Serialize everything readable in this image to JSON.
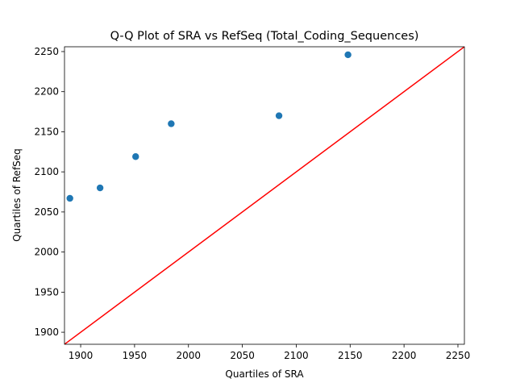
{
  "chart_data": {
    "type": "scatter",
    "title": "Q-Q Plot of SRA vs RefSeq (Total_Coding_Sequences)",
    "xlabel": "Quartiles of SRA",
    "ylabel": "Quartiles of RefSeq",
    "xlim": [
      1885,
      2256
    ],
    "ylim": [
      1885,
      2256
    ],
    "x_ticks": [
      1900,
      1950,
      2000,
      2050,
      2100,
      2150,
      2200,
      2250
    ],
    "y_ticks": [
      1900,
      1950,
      2000,
      2050,
      2100,
      2150,
      2200,
      2250
    ],
    "points": [
      {
        "x": 1890,
        "y": 2067
      },
      {
        "x": 1918,
        "y": 2080
      },
      {
        "x": 1951,
        "y": 2119
      },
      {
        "x": 1984,
        "y": 2160
      },
      {
        "x": 2084,
        "y": 2170
      },
      {
        "x": 2148,
        "y": 2246
      }
    ],
    "reference_line": {
      "from": [
        1885,
        1885
      ],
      "to": [
        2256,
        2256
      ]
    },
    "grid": false,
    "colors": {
      "points": "#1f77b4",
      "reference_line": "#ff0000",
      "axes": "#000000"
    }
  }
}
